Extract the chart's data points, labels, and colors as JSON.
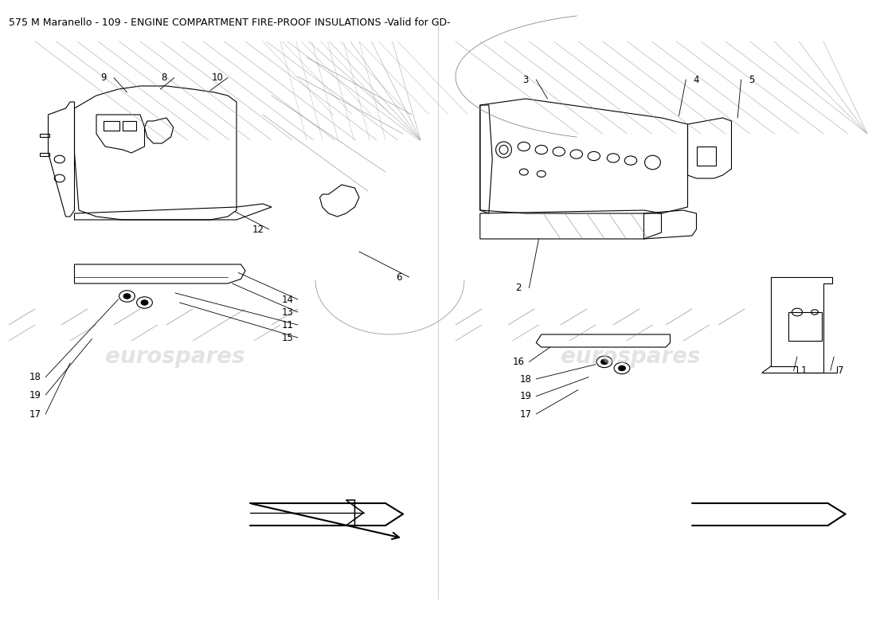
{
  "title": "575 M Maranello - 109 - ENGINE COMPARTMENT FIRE-PROOF INSULATIONS -Valid for GD-",
  "title_fontsize": 9,
  "title_color": "#000000",
  "bg_color": "#ffffff",
  "line_color": "#000000",
  "watermark_color": "#cccccc",
  "watermark_text": "eurospares",
  "fig_width": 11.0,
  "fig_height": 8.0,
  "dpi": 100
}
